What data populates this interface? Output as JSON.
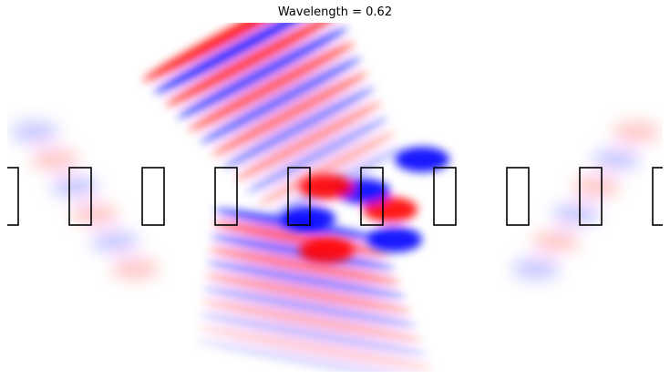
{
  "title": "Wavelength = 0.62",
  "colormap": {
    "positive": "#ff0000",
    "zero": "#ffffff",
    "negative": "#0000ff"
  },
  "scatterers": {
    "count": 10,
    "outline_color": "#000000"
  }
}
